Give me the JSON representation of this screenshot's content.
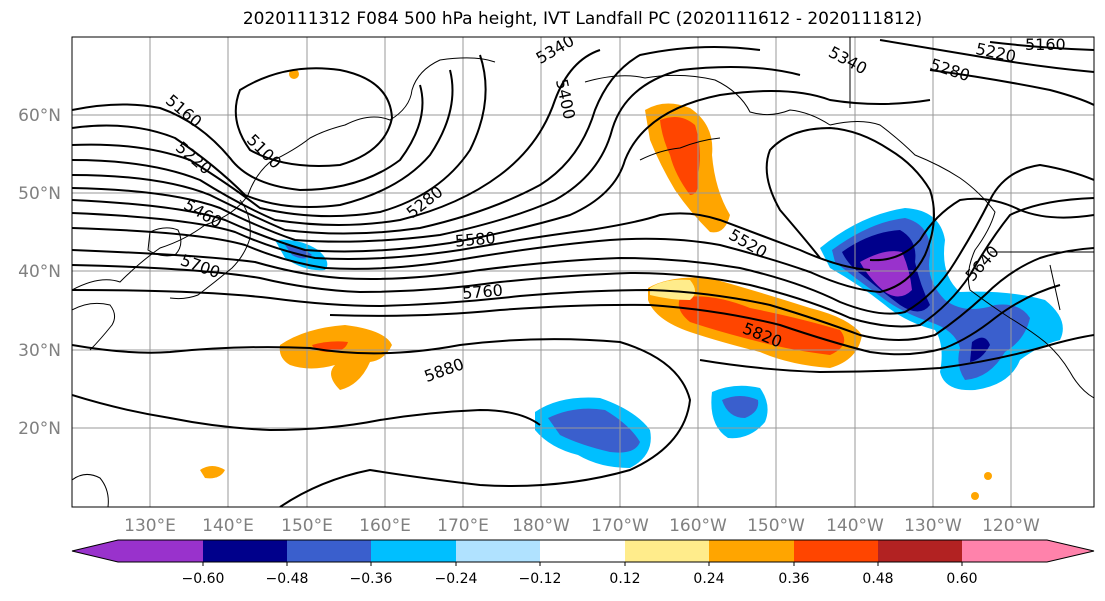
{
  "title": "2020111312 F084 500 hPa height, IVT Landfall PC (2020111612 - 2020111812)",
  "lat_labels": [
    "60°N",
    "50°N",
    "40°N",
    "30°N",
    "20°N"
  ],
  "lon_labels": [
    "130°E",
    "140°E",
    "150°E",
    "160°E",
    "170°E",
    "180°W",
    "170°W",
    "160°W",
    "150°W",
    "140°W",
    "130°W",
    "120°W"
  ],
  "contour_labels": [
    "5160",
    "5100",
    "5220",
    "5460",
    "5700",
    "5280",
    "5340",
    "5400",
    "5580",
    "5760",
    "5880",
    "5520",
    "5820",
    "5340",
    "5280",
    "5220",
    "5160",
    "5640"
  ],
  "colorbar": {
    "ticks": [
      "−0.60",
      "−0.48",
      "−0.36",
      "−0.24",
      "−0.12",
      "0.12",
      "0.24",
      "0.36",
      "0.48",
      "0.60"
    ],
    "colors": [
      "#9932cc",
      "#00008b",
      "#3a5fcd",
      "#00bfff",
      "#b0e2ff",
      "#ffffff",
      "#ffec8b",
      "#ffa500",
      "#ff4500",
      "#b22222",
      "#ff82ab"
    ]
  }
}
